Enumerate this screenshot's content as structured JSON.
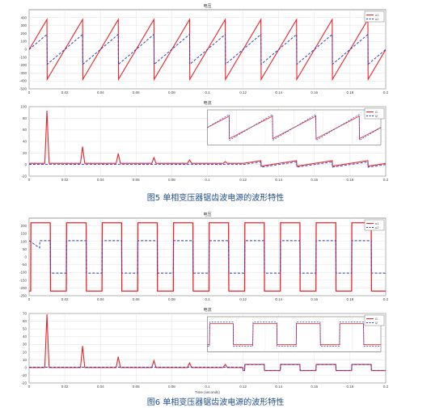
{
  "figures": [
    {
      "caption": "图5 单相变压器锯齿波电源的波形特性",
      "panels": [
        {
          "title": "电压",
          "xlabel": "",
          "xlim": [
            0,
            0.2
          ],
          "ylim": [
            -500,
            500
          ],
          "xticks": [
            "0",
            "0.02",
            "0.04",
            "0.06",
            "0.08",
            "0.1",
            "0.12",
            "0.14",
            "0.16",
            "0.18",
            "0.2"
          ],
          "yticks": [
            "400",
            "300",
            "200",
            "100",
            "0",
            "-100",
            "-200",
            "-300",
            "-400",
            "-500"
          ],
          "legend": [
            "u1",
            "u2"
          ]
        },
        {
          "title": "电流",
          "xlabel": "",
          "xlim": [
            0,
            0.2
          ],
          "ylim": [
            -20,
            100
          ],
          "xticks": [
            "0",
            "0.02",
            "0.04",
            "0.06",
            "0.08",
            "0.1",
            "0.12",
            "0.14",
            "0.16",
            "0.18",
            "0.2"
          ],
          "yticks": [
            "100",
            "80",
            "60",
            "40",
            "20",
            "0",
            "-20"
          ],
          "legend": [
            "i1",
            "i2"
          ]
        }
      ]
    },
    {
      "caption": "图6 单相变压器锯齿波电源的波形特性",
      "panels": [
        {
          "title": "电压",
          "xlabel": "",
          "xlim": [
            0,
            0.2
          ],
          "ylim": [
            -250,
            250
          ],
          "xticks": [
            "0",
            "0.02",
            "0.04",
            "0.06",
            "0.08",
            "0.1",
            "0.12",
            "0.14",
            "0.16",
            "0.18",
            "0.2"
          ],
          "yticks": [
            "200",
            "150",
            "100",
            "50",
            "0",
            "-50",
            "-100",
            "-150",
            "-200",
            "-250"
          ],
          "legend": [
            "u1",
            "u2"
          ]
        },
        {
          "title": "电流",
          "xlabel": "Time (seconds)",
          "xlim": [
            0,
            0.2
          ],
          "ylim": [
            -20,
            70
          ],
          "xticks": [
            "0",
            "0.02",
            "0.04",
            "0.06",
            "0.08",
            "0.1",
            "0.12",
            "0.14",
            "0.16",
            "0.18",
            "0.2"
          ],
          "yticks": [
            "70",
            "60",
            "50",
            "40",
            "30",
            "20",
            "10",
            "0",
            "-10",
            "-20"
          ],
          "legend": [
            "i1",
            "i2"
          ]
        }
      ]
    }
  ],
  "colors": {
    "series1": "#e8232a",
    "series2": "#2b3fc4",
    "grid": "#d9d9d9",
    "axis": "#555555",
    "tick": "#444444",
    "title": "#333333"
  },
  "chart_data": [
    {
      "type": "line",
      "title": "电压",
      "xlim": [
        0,
        0.2
      ],
      "ylim": [
        -500,
        500
      ],
      "grid": true,
      "legend_position": "top-right",
      "waveform": "sawtooth",
      "period": 0.02,
      "series": [
        {
          "name": "u1",
          "amplitude": 380,
          "x": [
            0,
            0.01,
            0.0101,
            0.02,
            0.03,
            0.0301,
            0.04
          ],
          "y": [
            -30,
            380,
            -380,
            380,
            -380,
            380,
            -380
          ]
        },
        {
          "name": "u2",
          "amplitude": 190,
          "x": [
            0,
            0.01,
            0.0101,
            0.02
          ],
          "y": [
            0,
            140,
            -190,
            190
          ]
        }
      ]
    },
    {
      "type": "line",
      "title": "电流",
      "xlim": [
        0,
        0.2
      ],
      "ylim": [
        -20,
        100
      ],
      "grid": true,
      "legend_position": "top-right",
      "series": [
        {
          "name": "i1",
          "peaks": [
            [
              0.01,
              93
            ],
            [
              0.03,
              31
            ],
            [
              0.05,
              19
            ],
            [
              0.07,
              12
            ],
            [
              0.09,
              8
            ],
            [
              0.11,
              5
            ]
          ],
          "baseline": 2
        },
        {
          "name": "i2",
          "peaks": [
            [
              0.01,
              5
            ]
          ],
          "baseline": 0
        }
      ],
      "inset": {
        "waveform": "sawtooth",
        "series": [
          "i1",
          "i2"
        ],
        "ylim": [
          -6,
          6
        ]
      }
    },
    {
      "type": "line",
      "title": "电压",
      "xlim": [
        0,
        0.2
      ],
      "ylim": [
        -250,
        250
      ],
      "grid": true,
      "legend_position": "top-right",
      "waveform": "square",
      "period": 0.02,
      "series": [
        {
          "name": "u1",
          "amplitude": 220
        },
        {
          "name": "u2",
          "amplitude": 105
        }
      ]
    },
    {
      "type": "line",
      "title": "电流",
      "xlabel": "Time (seconds)",
      "xlim": [
        0,
        0.2
      ],
      "ylim": [
        -20,
        70
      ],
      "grid": true,
      "legend_position": "top-right",
      "series": [
        {
          "name": "i1",
          "peaks": [
            [
              0.01,
              69
            ],
            [
              0.03,
              28
            ],
            [
              0.05,
              14
            ],
            [
              0.07,
              9
            ],
            [
              0.09,
              6
            ],
            [
              0.11,
              4
            ]
          ],
          "baseline": 0
        },
        {
          "name": "i2",
          "peaks": [
            [
              0.01,
              3
            ]
          ],
          "baseline": 0
        }
      ],
      "inset": {
        "waveform": "square",
        "series": [
          "i1",
          "i2"
        ],
        "ylim": [
          -5,
          5
        ]
      }
    }
  ]
}
